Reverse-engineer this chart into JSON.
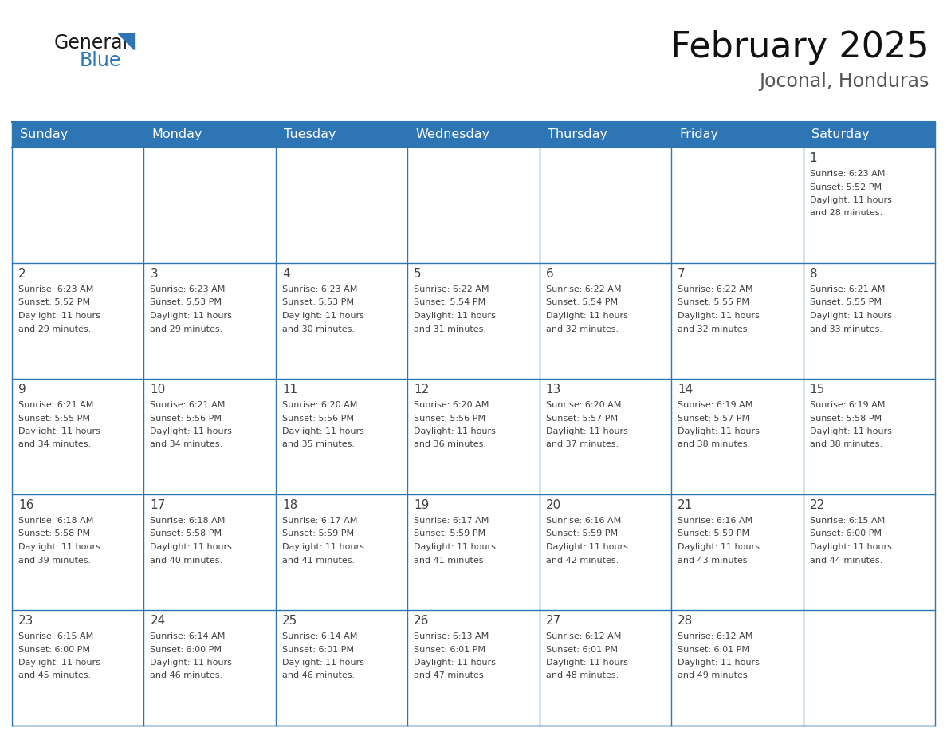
{
  "title": "February 2025",
  "subtitle": "Joconal, Honduras",
  "header_bg": "#2E75B6",
  "header_text_color": "#FFFFFF",
  "border_color": "#2E75B6",
  "text_color": "#404040",
  "days_of_week": [
    "Sunday",
    "Monday",
    "Tuesday",
    "Wednesday",
    "Thursday",
    "Friday",
    "Saturday"
  ],
  "weeks": [
    [
      {
        "day": null,
        "sunrise": null,
        "sunset": null,
        "daylight": null
      },
      {
        "day": null,
        "sunrise": null,
        "sunset": null,
        "daylight": null
      },
      {
        "day": null,
        "sunrise": null,
        "sunset": null,
        "daylight": null
      },
      {
        "day": null,
        "sunrise": null,
        "sunset": null,
        "daylight": null
      },
      {
        "day": null,
        "sunrise": null,
        "sunset": null,
        "daylight": null
      },
      {
        "day": null,
        "sunrise": null,
        "sunset": null,
        "daylight": null
      },
      {
        "day": 1,
        "sunrise": "6:23 AM",
        "sunset": "5:52 PM",
        "daylight": "11 hours and 28 minutes."
      }
    ],
    [
      {
        "day": 2,
        "sunrise": "6:23 AM",
        "sunset": "5:52 PM",
        "daylight": "11 hours and 29 minutes."
      },
      {
        "day": 3,
        "sunrise": "6:23 AM",
        "sunset": "5:53 PM",
        "daylight": "11 hours and 29 minutes."
      },
      {
        "day": 4,
        "sunrise": "6:23 AM",
        "sunset": "5:53 PM",
        "daylight": "11 hours and 30 minutes."
      },
      {
        "day": 5,
        "sunrise": "6:22 AM",
        "sunset": "5:54 PM",
        "daylight": "11 hours and 31 minutes."
      },
      {
        "day": 6,
        "sunrise": "6:22 AM",
        "sunset": "5:54 PM",
        "daylight": "11 hours and 32 minutes."
      },
      {
        "day": 7,
        "sunrise": "6:22 AM",
        "sunset": "5:55 PM",
        "daylight": "11 hours and 32 minutes."
      },
      {
        "day": 8,
        "sunrise": "6:21 AM",
        "sunset": "5:55 PM",
        "daylight": "11 hours and 33 minutes."
      }
    ],
    [
      {
        "day": 9,
        "sunrise": "6:21 AM",
        "sunset": "5:55 PM",
        "daylight": "11 hours and 34 minutes."
      },
      {
        "day": 10,
        "sunrise": "6:21 AM",
        "sunset": "5:56 PM",
        "daylight": "11 hours and 34 minutes."
      },
      {
        "day": 11,
        "sunrise": "6:20 AM",
        "sunset": "5:56 PM",
        "daylight": "11 hours and 35 minutes."
      },
      {
        "day": 12,
        "sunrise": "6:20 AM",
        "sunset": "5:56 PM",
        "daylight": "11 hours and 36 minutes."
      },
      {
        "day": 13,
        "sunrise": "6:20 AM",
        "sunset": "5:57 PM",
        "daylight": "11 hours and 37 minutes."
      },
      {
        "day": 14,
        "sunrise": "6:19 AM",
        "sunset": "5:57 PM",
        "daylight": "11 hours and 38 minutes."
      },
      {
        "day": 15,
        "sunrise": "6:19 AM",
        "sunset": "5:58 PM",
        "daylight": "11 hours and 38 minutes."
      }
    ],
    [
      {
        "day": 16,
        "sunrise": "6:18 AM",
        "sunset": "5:58 PM",
        "daylight": "11 hours and 39 minutes."
      },
      {
        "day": 17,
        "sunrise": "6:18 AM",
        "sunset": "5:58 PM",
        "daylight": "11 hours and 40 minutes."
      },
      {
        "day": 18,
        "sunrise": "6:17 AM",
        "sunset": "5:59 PM",
        "daylight": "11 hours and 41 minutes."
      },
      {
        "day": 19,
        "sunrise": "6:17 AM",
        "sunset": "5:59 PM",
        "daylight": "11 hours and 41 minutes."
      },
      {
        "day": 20,
        "sunrise": "6:16 AM",
        "sunset": "5:59 PM",
        "daylight": "11 hours and 42 minutes."
      },
      {
        "day": 21,
        "sunrise": "6:16 AM",
        "sunset": "5:59 PM",
        "daylight": "11 hours and 43 minutes."
      },
      {
        "day": 22,
        "sunrise": "6:15 AM",
        "sunset": "6:00 PM",
        "daylight": "11 hours and 44 minutes."
      }
    ],
    [
      {
        "day": 23,
        "sunrise": "6:15 AM",
        "sunset": "6:00 PM",
        "daylight": "11 hours and 45 minutes."
      },
      {
        "day": 24,
        "sunrise": "6:14 AM",
        "sunset": "6:00 PM",
        "daylight": "11 hours and 46 minutes."
      },
      {
        "day": 25,
        "sunrise": "6:14 AM",
        "sunset": "6:01 PM",
        "daylight": "11 hours and 46 minutes."
      },
      {
        "day": 26,
        "sunrise": "6:13 AM",
        "sunset": "6:01 PM",
        "daylight": "11 hours and 47 minutes."
      },
      {
        "day": 27,
        "sunrise": "6:12 AM",
        "sunset": "6:01 PM",
        "daylight": "11 hours and 48 minutes."
      },
      {
        "day": 28,
        "sunrise": "6:12 AM",
        "sunset": "6:01 PM",
        "daylight": "11 hours and 49 minutes."
      },
      {
        "day": null,
        "sunrise": null,
        "sunset": null,
        "daylight": null
      }
    ]
  ],
  "logo_color1": "#1a1a1a",
  "logo_color2": "#2E75B6"
}
